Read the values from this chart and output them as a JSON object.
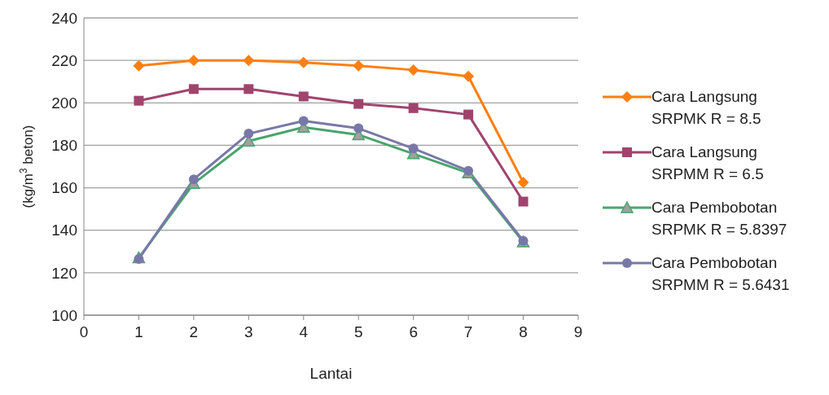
{
  "chart_data": {
    "type": "line",
    "xlabel": "Lantai",
    "ylabel": "(kg/m$^{3}$ beton)",
    "x": [
      1,
      2,
      3,
      4,
      5,
      6,
      7,
      8
    ],
    "series": [
      {
        "name": "Cara Langsung\nSRPMK R = 8.5",
        "color": "#ff7f0e",
        "marker": "diamond",
        "values": [
          217.5,
          220,
          220,
          219,
          217.5,
          215.5,
          212.5,
          162.5
        ]
      },
      {
        "name": "Cara Langsung\nSRPMM R = 6.5",
        "color": "#a0446e",
        "marker": "square",
        "values": [
          201,
          206.5,
          206.5,
          203,
          199.5,
          197.5,
          194.5,
          153.5
        ]
      },
      {
        "name": "Cara Pembobotan\nSRPMK R = 5.8397",
        "color": "#4aa46e",
        "marker": "triangle",
        "values": [
          127,
          162,
          182,
          188.5,
          185,
          176,
          167,
          134.5
        ]
      },
      {
        "name": "Cara Pembobotan\nSRPMM R = 5.6431",
        "color": "#7878a8",
        "marker": "circle",
        "values": [
          126.5,
          164,
          185.5,
          191.5,
          188,
          178.5,
          168,
          135
        ]
      }
    ],
    "xlim": [
      0,
      9
    ],
    "xticks": [
      0,
      1,
      2,
      3,
      4,
      5,
      6,
      7,
      8,
      9
    ],
    "ylim": [
      100,
      240
    ],
    "yticks": [
      100,
      120,
      140,
      160,
      180,
      200,
      220,
      240
    ],
    "grid": "y",
    "legend": "right"
  }
}
